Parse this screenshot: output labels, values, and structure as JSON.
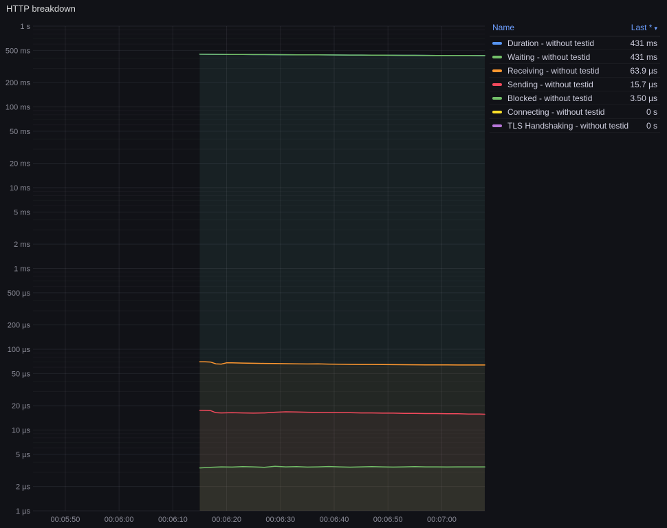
{
  "panel": {
    "title": "HTTP breakdown"
  },
  "legend": {
    "name_header": "Name",
    "last_header": "Last *",
    "sort_icon": "▾",
    "header_color": "#6E9FFF"
  },
  "chart_data": {
    "type": "line",
    "title": "HTTP breakdown",
    "y_scale": "log",
    "y_unit": "time",
    "ylim_us": [
      1,
      1000000
    ],
    "grid": true,
    "legend_position": "right-top",
    "x_domain_s": [
      344,
      428
    ],
    "x_ticks": [
      {
        "label": "00:05:50",
        "s": 350
      },
      {
        "label": "00:06:00",
        "s": 360
      },
      {
        "label": "00:06:10",
        "s": 370
      },
      {
        "label": "00:06:20",
        "s": 380
      },
      {
        "label": "00:06:30",
        "s": 390
      },
      {
        "label": "00:06:40",
        "s": 400
      },
      {
        "label": "00:06:50",
        "s": 410
      },
      {
        "label": "00:07:00",
        "s": 420
      }
    ],
    "y_ticks": [
      {
        "label": "1 s",
        "us": 1000000
      },
      {
        "label": "500 ms",
        "us": 500000
      },
      {
        "label": "200 ms",
        "us": 200000
      },
      {
        "label": "100 ms",
        "us": 100000
      },
      {
        "label": "50 ms",
        "us": 50000
      },
      {
        "label": "20 ms",
        "us": 20000
      },
      {
        "label": "10 ms",
        "us": 10000
      },
      {
        "label": "5 ms",
        "us": 5000
      },
      {
        "label": "2 ms",
        "us": 2000
      },
      {
        "label": "1 ms",
        "us": 1000
      },
      {
        "label": "500 µs",
        "us": 500
      },
      {
        "label": "200 µs",
        "us": 200
      },
      {
        "label": "100 µs",
        "us": 100
      },
      {
        "label": "50 µs",
        "us": 50
      },
      {
        "label": "20 µs",
        "us": 20
      },
      {
        "label": "10 µs",
        "us": 10
      },
      {
        "label": "5 µs",
        "us": 5
      },
      {
        "label": "2 µs",
        "us": 2
      },
      {
        "label": "1 µs",
        "us": 1
      }
    ],
    "series": [
      {
        "name": "Duration - without testid",
        "last": "431 ms",
        "color": "#5794F2",
        "points": [
          [
            375,
            449000
          ],
          [
            377,
            448000
          ],
          [
            379,
            447000
          ],
          [
            381,
            446000
          ],
          [
            383,
            445000
          ],
          [
            385,
            444500
          ],
          [
            387,
            444000
          ],
          [
            389,
            443000
          ],
          [
            391,
            442500
          ],
          [
            393,
            442000
          ],
          [
            395,
            441000
          ],
          [
            397,
            440500
          ],
          [
            399,
            440000
          ],
          [
            401,
            439000
          ],
          [
            403,
            438500
          ],
          [
            405,
            438000
          ],
          [
            407,
            437000
          ],
          [
            409,
            436500
          ],
          [
            411,
            436000
          ],
          [
            413,
            435000
          ],
          [
            415,
            434500
          ],
          [
            417,
            434000
          ],
          [
            419,
            433500
          ],
          [
            421,
            433000
          ],
          [
            423,
            432500
          ],
          [
            425,
            432000
          ],
          [
            427,
            431500
          ],
          [
            428,
            431000
          ]
        ]
      },
      {
        "name": "Waiting - without testid",
        "last": "431 ms",
        "color": "#73BF69",
        "points": [
          [
            375,
            449000
          ],
          [
            377,
            448000
          ],
          [
            379,
            447000
          ],
          [
            381,
            446000
          ],
          [
            383,
            445000
          ],
          [
            385,
            444500
          ],
          [
            387,
            444000
          ],
          [
            389,
            443000
          ],
          [
            391,
            442500
          ],
          [
            393,
            442000
          ],
          [
            395,
            441000
          ],
          [
            397,
            440500
          ],
          [
            399,
            440000
          ],
          [
            401,
            439000
          ],
          [
            403,
            438500
          ],
          [
            405,
            438000
          ],
          [
            407,
            437000
          ],
          [
            409,
            436500
          ],
          [
            411,
            436000
          ],
          [
            413,
            435000
          ],
          [
            415,
            434500
          ],
          [
            417,
            434000
          ],
          [
            419,
            433500
          ],
          [
            421,
            433000
          ],
          [
            423,
            432500
          ],
          [
            425,
            432000
          ],
          [
            427,
            431500
          ],
          [
            428,
            431000
          ]
        ]
      },
      {
        "name": "Receiving - without testid",
        "last": "63.9 µs",
        "color": "#FF9830",
        "points": [
          [
            375,
            70
          ],
          [
            376,
            70
          ],
          [
            377,
            69.5
          ],
          [
            378,
            66
          ],
          [
            379,
            65.5
          ],
          [
            380,
            68
          ],
          [
            381,
            67.8
          ],
          [
            383,
            67.5
          ],
          [
            385,
            67
          ],
          [
            387,
            66.8
          ],
          [
            389,
            66.5
          ],
          [
            391,
            66.2
          ],
          [
            393,
            66
          ],
          [
            395,
            65.8
          ],
          [
            397,
            66
          ],
          [
            399,
            65.5
          ],
          [
            401,
            65.2
          ],
          [
            403,
            65
          ],
          [
            405,
            64.9
          ],
          [
            407,
            64.8
          ],
          [
            409,
            64.6
          ],
          [
            411,
            64.5
          ],
          [
            413,
            64.4
          ],
          [
            415,
            64.2
          ],
          [
            417,
            64.1
          ],
          [
            419,
            64
          ],
          [
            421,
            64
          ],
          [
            423,
            63.9
          ],
          [
            425,
            63.9
          ],
          [
            427,
            63.9
          ],
          [
            428,
            63.9
          ]
        ]
      },
      {
        "name": "Sending - without testid",
        "last": "15.7 µs",
        "color": "#F2495C",
        "points": [
          [
            375,
            17.6
          ],
          [
            376,
            17.5
          ],
          [
            377,
            17.4
          ],
          [
            378,
            16.4
          ],
          [
            379,
            16.3
          ],
          [
            381,
            16.4
          ],
          [
            383,
            16.3
          ],
          [
            385,
            16.2
          ],
          [
            387,
            16.3
          ],
          [
            389,
            16.6
          ],
          [
            391,
            16.8
          ],
          [
            393,
            16.7
          ],
          [
            395,
            16.6
          ],
          [
            397,
            16.5
          ],
          [
            399,
            16.5
          ],
          [
            401,
            16.4
          ],
          [
            403,
            16.4
          ],
          [
            405,
            16.3
          ],
          [
            407,
            16.3
          ],
          [
            409,
            16.2
          ],
          [
            411,
            16.2
          ],
          [
            413,
            16.1
          ],
          [
            415,
            16.1
          ],
          [
            417,
            16.0
          ],
          [
            419,
            16.0
          ],
          [
            421,
            15.9
          ],
          [
            423,
            15.9
          ],
          [
            425,
            15.8
          ],
          [
            427,
            15.8
          ],
          [
            428,
            15.7
          ]
        ]
      },
      {
        "name": "Blocked - without testid",
        "last": "3.50 µs",
        "color": "#73BF69",
        "points": [
          [
            375,
            3.4
          ],
          [
            377,
            3.45
          ],
          [
            379,
            3.5
          ],
          [
            381,
            3.48
          ],
          [
            383,
            3.52
          ],
          [
            385,
            3.5
          ],
          [
            387,
            3.46
          ],
          [
            389,
            3.55
          ],
          [
            391,
            3.5
          ],
          [
            393,
            3.52
          ],
          [
            395,
            3.48
          ],
          [
            397,
            3.5
          ],
          [
            399,
            3.53
          ],
          [
            401,
            3.5
          ],
          [
            403,
            3.47
          ],
          [
            405,
            3.5
          ],
          [
            407,
            3.52
          ],
          [
            409,
            3.5
          ],
          [
            411,
            3.48
          ],
          [
            413,
            3.5
          ],
          [
            415,
            3.52
          ],
          [
            417,
            3.5
          ],
          [
            419,
            3.5
          ],
          [
            421,
            3.49
          ],
          [
            423,
            3.5
          ],
          [
            425,
            3.5
          ],
          [
            427,
            3.5
          ],
          [
            428,
            3.5
          ]
        ]
      },
      {
        "name": "Connecting - without testid",
        "last": "0 s",
        "color": "#FADE2A",
        "points": []
      },
      {
        "name": "TLS Handshaking - without testid",
        "last": "0 s",
        "color": "#B877D9",
        "points": []
      }
    ]
  }
}
